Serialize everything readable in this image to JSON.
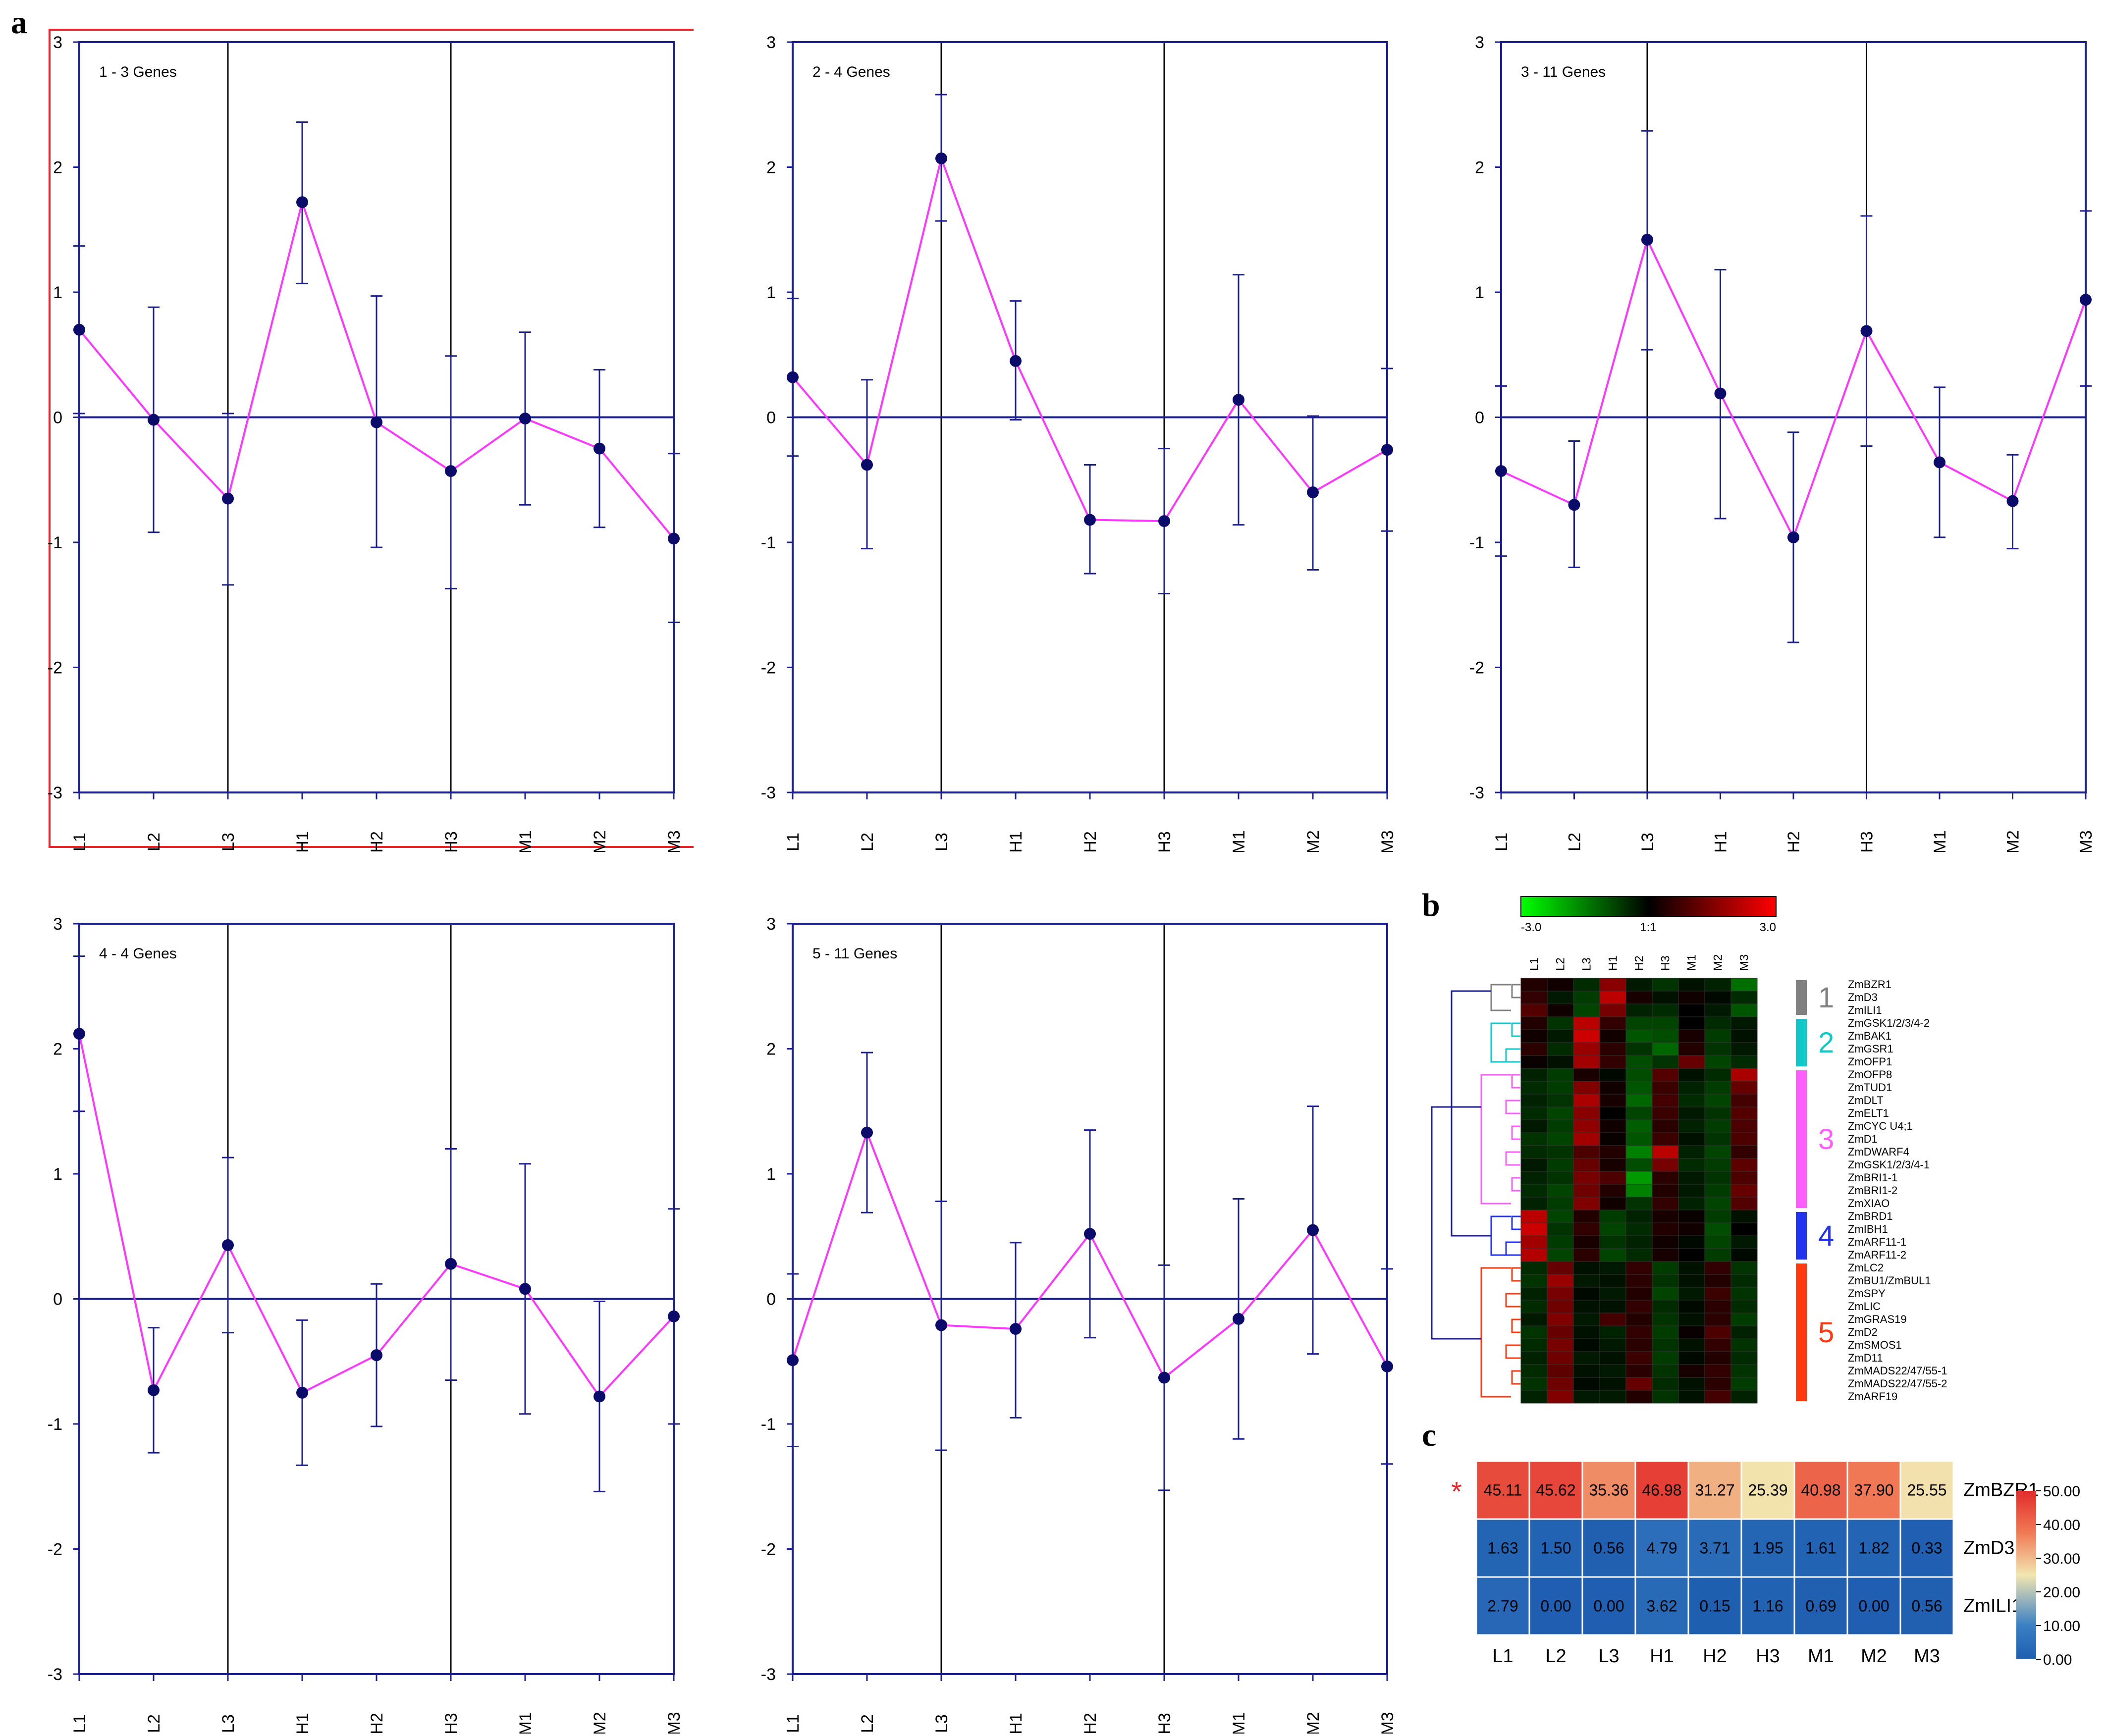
{
  "panel_letters": {
    "a": "a",
    "b": "b",
    "c": "c"
  },
  "colors": {
    "axis": "#1c1f8f",
    "profile": "#ff38ff",
    "point": "#0b0c6a",
    "highlight_box": "#e8252b",
    "divider": "#000000"
  },
  "chart_data": [
    {
      "type": "line",
      "title": "1 - 3 Genes",
      "categories": [
        "L1",
        "L2",
        "L3",
        "H1",
        "H2",
        "H3",
        "M1",
        "M2",
        "M3"
      ],
      "values": [
        0.7,
        -0.02,
        -0.65,
        1.72,
        -0.04,
        -0.43,
        -0.01,
        -0.25,
        -0.97
      ],
      "err_hi": [
        1.37,
        0.88,
        0.03,
        2.36,
        0.97,
        0.49,
        0.68,
        0.38,
        -0.29
      ],
      "err_lo": [
        0.03,
        -0.92,
        -1.34,
        1.07,
        -1.04,
        -1.37,
        -0.7,
        -0.88,
        -1.64
      ],
      "yticks": [
        "3",
        "2",
        "1",
        "0",
        "-1",
        "-2",
        "-3"
      ],
      "ylim": [
        -3,
        3
      ],
      "dividers_after": [
        "L3",
        "H3"
      ],
      "highlighted": true
    },
    {
      "type": "line",
      "title": "2 - 4 Genes",
      "categories": [
        "L1",
        "L2",
        "L3",
        "H1",
        "H2",
        "H3",
        "M1",
        "M2",
        "M3"
      ],
      "values": [
        0.32,
        -0.38,
        2.07,
        0.45,
        -0.82,
        -0.83,
        0.14,
        -0.6,
        -0.26
      ],
      "err_hi": [
        0.95,
        0.3,
        2.58,
        0.93,
        -0.38,
        -0.25,
        1.14,
        0.01,
        0.39
      ],
      "err_lo": [
        -0.31,
        -1.05,
        1.57,
        -0.02,
        -1.25,
        -1.41,
        -0.86,
        -1.22,
        -0.91
      ],
      "yticks": [
        "3",
        "2",
        "1",
        "0",
        "-1",
        "-2",
        "-3"
      ],
      "ylim": [
        -3,
        3
      ],
      "dividers_after": [
        "L3",
        "H3"
      ],
      "highlighted": false
    },
    {
      "type": "line",
      "title": "3 - 11 Genes",
      "categories": [
        "L1",
        "L2",
        "L3",
        "H1",
        "H2",
        "H3",
        "M1",
        "M2",
        "M3"
      ],
      "values": [
        -0.43,
        -0.7,
        1.42,
        0.19,
        -0.96,
        0.69,
        -0.36,
        -0.67,
        0.94
      ],
      "err_hi": [
        0.25,
        -0.19,
        2.29,
        1.18,
        -0.12,
        1.61,
        0.24,
        -0.3,
        1.65
      ],
      "err_lo": [
        -1.11,
        -1.2,
        0.54,
        -0.81,
        -1.8,
        -0.23,
        -0.96,
        -1.05,
        0.25
      ],
      "yticks": [
        "3",
        "2",
        "1",
        "0",
        "-1",
        "-2",
        "-3"
      ],
      "ylim": [
        -3,
        3
      ],
      "dividers_after": [
        "L3",
        "H3"
      ],
      "highlighted": false
    },
    {
      "type": "line",
      "title": "4 - 4 Genes",
      "categories": [
        "L1",
        "L2",
        "L3",
        "H1",
        "H2",
        "H3",
        "M1",
        "M2",
        "M3"
      ],
      "values": [
        2.12,
        -0.73,
        0.43,
        -0.75,
        -0.45,
        0.28,
        0.08,
        -0.78,
        -0.14
      ],
      "err_hi": [
        2.74,
        -0.23,
        1.13,
        -0.17,
        0.12,
        1.2,
        1.08,
        -0.02,
        0.72
      ],
      "err_lo": [
        1.5,
        -1.23,
        -0.27,
        -1.33,
        -1.02,
        -0.65,
        -0.92,
        -1.54,
        -1.0
      ],
      "yticks": [
        "3",
        "2",
        "1",
        "0",
        "-1",
        "-2",
        "-3"
      ],
      "ylim": [
        -3,
        3
      ],
      "dividers_after": [
        "L3",
        "H3"
      ],
      "highlighted": false
    },
    {
      "type": "line",
      "title": "5 - 11 Genes",
      "categories": [
        "L1",
        "L2",
        "L3",
        "H1",
        "H2",
        "H3",
        "M1",
        "M2",
        "M3"
      ],
      "values": [
        -0.49,
        1.33,
        -0.21,
        -0.24,
        0.52,
        -0.63,
        -0.16,
        0.55,
        -0.54
      ],
      "err_hi": [
        0.2,
        1.97,
        0.78,
        0.45,
        1.35,
        0.27,
        0.8,
        1.54,
        0.24
      ],
      "err_lo": [
        -1.18,
        0.69,
        -1.21,
        -0.95,
        -0.31,
        -1.53,
        -1.12,
        -0.44,
        -1.32
      ],
      "yticks": [
        "3",
        "2",
        "1",
        "0",
        "-1",
        "-2",
        "-3"
      ],
      "ylim": [
        -3,
        3
      ],
      "dividers_after": [
        "L3",
        "H3"
      ],
      "highlighted": false
    },
    {
      "type": "heatmap",
      "panel": "b",
      "columns": [
        "L1",
        "L2",
        "L3",
        "H1",
        "H2",
        "H3",
        "M1",
        "M2",
        "M3"
      ],
      "scale_labels": [
        "-3.0",
        "1:1",
        "3.0"
      ],
      "color_low": "#00ff00",
      "color_mid": "#000000",
      "color_high": "#ff0000",
      "genes": [
        "ZmBZR1",
        "ZmD3",
        "ZmILI1",
        "ZmGSK1/2/3/4-2",
        "ZmBAK1",
        "ZmGSR1",
        "ZmOFP1",
        "ZmOFP8",
        "ZmTUD1",
        "ZmDLT",
        "ZmELT1",
        "ZmCYC U4;1",
        "ZmD1",
        "ZmDWARF4",
        "ZmGSK1/2/3/4-1",
        "ZmBRI1-1",
        "ZmBRI1-2",
        "ZmXIAO",
        "ZmBRD1",
        "ZmIBH1",
        "ZmARF11-1",
        "ZmARF11-2",
        "ZmLC2",
        "ZmBU1/ZmBUL1",
        "ZmSPY",
        "ZmLIC",
        "ZmGRAS19",
        "ZmD2",
        "ZmSMOS1",
        "ZmD11",
        "ZmMADS22/47/55-1",
        "ZmMADS22/47/55-2",
        "ZmARF19"
      ],
      "values": [
        [
          0.4,
          0.2,
          -0.5,
          1.6,
          -0.3,
          -0.6,
          -0.2,
          -0.4,
          -1.3
        ],
        [
          0.6,
          -0.3,
          -0.7,
          2.2,
          0.3,
          -0.2,
          0.2,
          -0.1,
          -0.5
        ],
        [
          1.0,
          0.2,
          -0.8,
          1.4,
          -0.4,
          -0.5,
          0.0,
          -0.3,
          -1.0
        ],
        [
          0.4,
          -0.6,
          2.2,
          0.6,
          -0.8,
          -0.8,
          0.0,
          -0.5,
          -0.3
        ],
        [
          0.2,
          -0.3,
          2.4,
          0.2,
          -1.0,
          -0.9,
          0.3,
          -0.7,
          -0.2
        ],
        [
          0.5,
          -0.5,
          1.8,
          0.5,
          -0.6,
          -1.2,
          0.4,
          -0.6,
          -0.3
        ],
        [
          0.1,
          -0.2,
          1.9,
          0.6,
          -0.9,
          -0.6,
          1.2,
          -0.8,
          -0.5
        ],
        [
          -0.4,
          -0.7,
          0.3,
          -0.1,
          -0.9,
          1.0,
          -0.2,
          -0.5,
          2.0
        ],
        [
          -0.5,
          -0.7,
          1.5,
          0.2,
          -1.0,
          0.7,
          -0.4,
          -0.7,
          1.2
        ],
        [
          -0.4,
          -0.6,
          2.0,
          0.3,
          -1.2,
          0.8,
          -0.5,
          -0.8,
          0.8
        ],
        [
          -0.5,
          -0.8,
          1.6,
          0.0,
          -0.8,
          0.7,
          -0.3,
          -0.6,
          1.0
        ],
        [
          -0.3,
          -0.7,
          1.7,
          0.2,
          -1.1,
          0.5,
          -0.4,
          -0.7,
          0.9
        ],
        [
          -0.6,
          -0.8,
          1.9,
          0.1,
          -1.0,
          0.7,
          -0.2,
          -0.6,
          0.9
        ],
        [
          -0.5,
          -0.6,
          0.9,
          0.4,
          -1.5,
          2.2,
          -0.4,
          -0.8,
          0.6
        ],
        [
          -0.3,
          -0.7,
          1.2,
          0.3,
          -0.9,
          1.4,
          -0.5,
          -0.7,
          1.1
        ],
        [
          -0.4,
          -0.6,
          1.4,
          0.9,
          -1.8,
          0.5,
          -0.3,
          -0.6,
          0.9
        ],
        [
          -0.5,
          -0.8,
          1.3,
          0.4,
          -1.5,
          0.4,
          -0.3,
          -0.7,
          1.2
        ],
        [
          -0.4,
          -0.7,
          1.5,
          0.2,
          -0.6,
          0.6,
          -0.4,
          -0.8,
          1.0
        ],
        [
          2.2,
          -0.8,
          0.4,
          -0.7,
          -0.4,
          0.3,
          0.1,
          -0.7,
          -0.2
        ],
        [
          2.4,
          -0.6,
          0.6,
          -0.8,
          -0.5,
          0.4,
          0.2,
          -0.9,
          0.0
        ],
        [
          1.9,
          -0.7,
          0.3,
          -0.6,
          -0.4,
          0.2,
          -0.1,
          -0.8,
          -0.3
        ],
        [
          2.1,
          -0.8,
          0.5,
          -0.8,
          -0.5,
          0.3,
          0.0,
          -0.7,
          -0.1
        ],
        [
          -0.5,
          1.2,
          -0.2,
          -0.3,
          0.6,
          -0.7,
          -0.2,
          0.6,
          -0.6
        ],
        [
          -0.6,
          1.8,
          -0.3,
          -0.2,
          0.5,
          -0.6,
          -0.2,
          0.4,
          -0.5
        ],
        [
          -0.4,
          1.4,
          -0.1,
          -0.3,
          0.4,
          -0.8,
          -0.3,
          0.7,
          -0.6
        ],
        [
          -0.5,
          1.3,
          -0.2,
          -0.2,
          0.6,
          -0.5,
          -0.1,
          0.5,
          -0.5
        ],
        [
          -0.3,
          1.5,
          -0.3,
          0.8,
          0.4,
          -0.6,
          -0.2,
          0.5,
          -0.7
        ],
        [
          -0.6,
          1.2,
          -0.2,
          -0.4,
          0.6,
          -0.7,
          0.1,
          0.9,
          -0.4
        ],
        [
          -0.5,
          1.4,
          -0.1,
          -0.3,
          0.5,
          -0.6,
          -0.2,
          0.6,
          -0.6
        ],
        [
          -0.4,
          1.3,
          -0.3,
          -0.2,
          0.7,
          -0.7,
          -0.1,
          0.4,
          -0.5
        ],
        [
          -0.5,
          1.1,
          -0.2,
          -0.3,
          0.5,
          -0.6,
          0.3,
          0.6,
          -0.6
        ],
        [
          -0.6,
          1.3,
          -0.1,
          -0.2,
          1.2,
          -0.5,
          -0.2,
          0.5,
          -0.7
        ],
        [
          -0.4,
          1.5,
          -0.3,
          -0.3,
          0.4,
          -0.6,
          -0.2,
          0.8,
          -0.4
        ]
      ],
      "clusters": [
        {
          "label": "1",
          "start": 0,
          "count": 3,
          "color": "#808080"
        },
        {
          "label": "2",
          "start": 3,
          "count": 4,
          "color": "#10c8c8"
        },
        {
          "label": "3",
          "start": 7,
          "count": 11,
          "color": "#ff5eff"
        },
        {
          "label": "4",
          "start": 18,
          "count": 4,
          "color": "#2233ee"
        },
        {
          "label": "5",
          "start": 22,
          "count": 11,
          "color": "#ff3a10"
        }
      ]
    },
    {
      "type": "table",
      "panel": "c",
      "columns": [
        "L1",
        "L2",
        "L3",
        "H1",
        "H2",
        "H3",
        "M1",
        "M2",
        "M3"
      ],
      "rows": [
        {
          "gene": "ZmBZR1",
          "marker": "*",
          "values": [
            "45.11",
            "45.62",
            "35.36",
            "46.98",
            "31.27",
            "25.39",
            "40.98",
            "37.90",
            "25.55"
          ]
        },
        {
          "gene": "ZmD3",
          "marker": "",
          "values": [
            "1.63",
            "1.50",
            "0.56",
            "4.79",
            "3.71",
            "1.95",
            "1.61",
            "1.82",
            "0.33"
          ]
        },
        {
          "gene": "ZmILI1",
          "marker": "",
          "values": [
            "2.79",
            "0.00",
            "0.00",
            "3.62",
            "0.15",
            "1.16",
            "0.69",
            "0.00",
            "0.56"
          ]
        }
      ],
      "colorbar_ticks": [
        "50.00",
        "40.00",
        "30.00",
        "20.00",
        "10.00",
        "0.00"
      ],
      "vmin": 0,
      "vmax": 50
    }
  ]
}
